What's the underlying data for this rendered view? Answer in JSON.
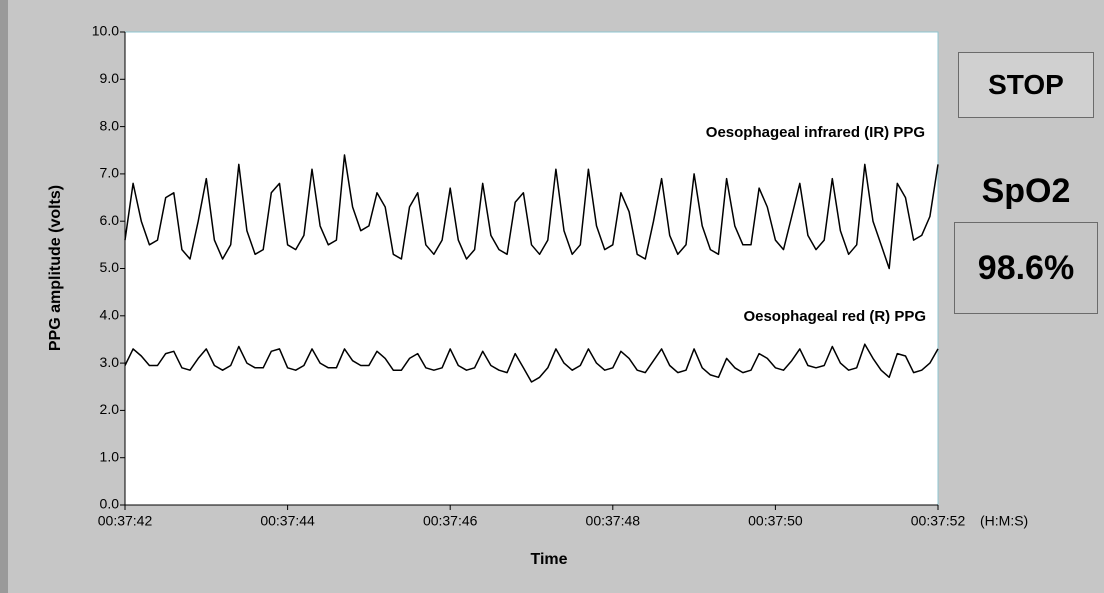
{
  "chart_data": {
    "type": "line",
    "ylabel": "PPG amplitude (volts)",
    "xlabel": "Time",
    "x_unit_label": "(H:M:S)",
    "xlim": [
      2262,
      2272
    ],
    "xticks": [
      {
        "value": 2262,
        "label": "00:37:42"
      },
      {
        "value": 2264,
        "label": "00:37:44"
      },
      {
        "value": 2266,
        "label": "00:37:46"
      },
      {
        "value": 2268,
        "label": "00:37:48"
      },
      {
        "value": 2270,
        "label": "00:37:50"
      },
      {
        "value": 2272,
        "label": "00:37:52"
      }
    ],
    "ylim": [
      0,
      10
    ],
    "yticks": [
      {
        "value": 0,
        "label": "0.0"
      },
      {
        "value": 1,
        "label": "1.0"
      },
      {
        "value": 2,
        "label": "2.0"
      },
      {
        "value": 3,
        "label": "3.0"
      },
      {
        "value": 4,
        "label": "4.0"
      },
      {
        "value": 5,
        "label": "5.0"
      },
      {
        "value": 6,
        "label": "6.0"
      },
      {
        "value": 7,
        "label": "7.0"
      },
      {
        "value": 8,
        "label": "8.0"
      },
      {
        "value": 9,
        "label": "9.0"
      },
      {
        "value": 10,
        "label": "10.0"
      }
    ],
    "x": [
      2262.0,
      2262.1,
      2262.2,
      2262.3,
      2262.4,
      2262.5,
      2262.6,
      2262.7,
      2262.8,
      2262.9,
      2263.0,
      2263.1,
      2263.2,
      2263.3,
      2263.4,
      2263.5,
      2263.6,
      2263.7,
      2263.8,
      2263.9,
      2264.0,
      2264.1,
      2264.2,
      2264.3,
      2264.4,
      2264.5,
      2264.6,
      2264.7,
      2264.8,
      2264.9,
      2265.0,
      2265.1,
      2265.2,
      2265.3,
      2265.4,
      2265.5,
      2265.6,
      2265.7,
      2265.8,
      2265.9,
      2266.0,
      2266.1,
      2266.2,
      2266.3,
      2266.4,
      2266.5,
      2266.6,
      2266.7,
      2266.8,
      2266.9,
      2267.0,
      2267.1,
      2267.2,
      2267.3,
      2267.4,
      2267.5,
      2267.6,
      2267.7,
      2267.8,
      2267.9,
      2268.0,
      2268.1,
      2268.2,
      2268.3,
      2268.4,
      2268.5,
      2268.6,
      2268.7,
      2268.8,
      2268.9,
      2269.0,
      2269.1,
      2269.2,
      2269.3,
      2269.4,
      2269.5,
      2269.6,
      2269.7,
      2269.8,
      2269.9,
      2270.0,
      2270.1,
      2270.2,
      2270.3,
      2270.4,
      2270.5,
      2270.6,
      2270.7,
      2270.8,
      2270.9,
      2271.0,
      2271.1,
      2271.2,
      2271.3,
      2271.4,
      2271.5,
      2271.6,
      2271.7,
      2271.8,
      2271.9,
      2272.0
    ],
    "series": [
      {
        "name": "Oesophageal infrared (IR) PPG",
        "color": "#000000",
        "values": [
          5.6,
          6.8,
          6.0,
          5.5,
          5.6,
          6.5,
          6.6,
          5.4,
          5.2,
          6.0,
          6.9,
          5.6,
          5.2,
          5.5,
          7.2,
          5.8,
          5.3,
          5.4,
          6.6,
          6.8,
          5.5,
          5.4,
          5.7,
          7.1,
          5.9,
          5.5,
          5.6,
          7.4,
          6.3,
          5.8,
          5.9,
          6.6,
          6.3,
          5.3,
          5.2,
          6.3,
          6.6,
          5.5,
          5.3,
          5.6,
          6.7,
          5.6,
          5.2,
          5.4,
          6.8,
          5.7,
          5.4,
          5.3,
          6.4,
          6.6,
          5.5,
          5.3,
          5.6,
          7.1,
          5.8,
          5.3,
          5.5,
          7.1,
          5.9,
          5.4,
          5.5,
          6.6,
          6.2,
          5.3,
          5.2,
          6.0,
          6.9,
          5.7,
          5.3,
          5.5,
          7.0,
          5.9,
          5.4,
          5.3,
          6.9,
          5.9,
          5.5,
          5.5,
          6.7,
          6.3,
          5.6,
          5.4,
          6.1,
          6.8,
          5.7,
          5.4,
          5.6,
          6.9,
          5.8,
          5.3,
          5.5,
          7.2,
          6.0,
          5.5,
          5.0,
          6.8,
          6.5,
          5.6,
          5.7,
          6.1,
          7.2
        ]
      },
      {
        "name": "Oesophageal red (R) PPG",
        "color": "#000000",
        "values": [
          2.95,
          3.3,
          3.15,
          2.95,
          2.95,
          3.2,
          3.25,
          2.9,
          2.85,
          3.1,
          3.3,
          2.95,
          2.85,
          2.95,
          3.35,
          3.0,
          2.9,
          2.9,
          3.25,
          3.3,
          2.9,
          2.85,
          2.95,
          3.3,
          3.0,
          2.9,
          2.9,
          3.3,
          3.05,
          2.95,
          2.95,
          3.25,
          3.1,
          2.85,
          2.85,
          3.1,
          3.2,
          2.9,
          2.85,
          2.9,
          3.3,
          2.95,
          2.85,
          2.9,
          3.25,
          2.95,
          2.85,
          2.8,
          3.2,
          2.9,
          2.6,
          2.7,
          2.9,
          3.3,
          3.0,
          2.85,
          2.95,
          3.3,
          3.0,
          2.85,
          2.9,
          3.25,
          3.1,
          2.85,
          2.8,
          3.05,
          3.3,
          2.95,
          2.8,
          2.85,
          3.3,
          2.9,
          2.75,
          2.7,
          3.1,
          2.9,
          2.8,
          2.85,
          3.2,
          3.1,
          2.9,
          2.85,
          3.05,
          3.3,
          2.95,
          2.9,
          2.95,
          3.35,
          3.0,
          2.85,
          2.9,
          3.4,
          3.1,
          2.85,
          2.7,
          3.2,
          3.15,
          2.8,
          2.85,
          3.0,
          3.3
        ]
      }
    ]
  },
  "controls": {
    "stop_button": "STOP",
    "spo2_label": "SpO2",
    "spo2_value": "98.6%"
  }
}
